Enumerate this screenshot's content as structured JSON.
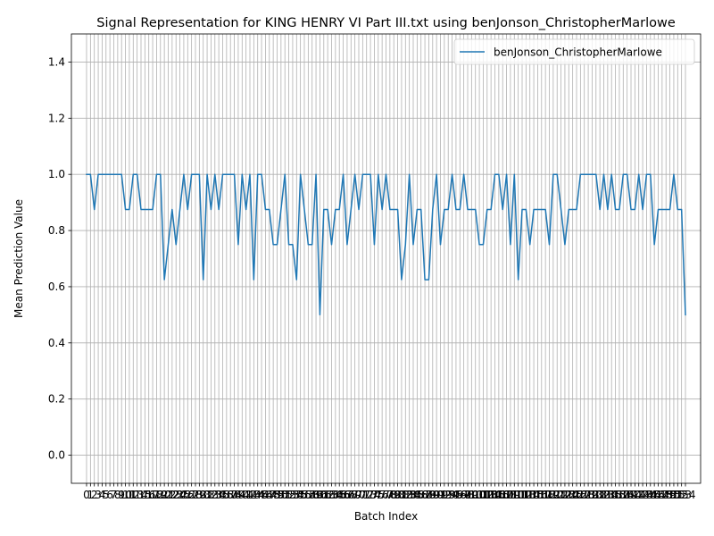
{
  "chart_data": {
    "type": "line",
    "title": "Signal Representation for KING HENRY VI Part III.txt using benJonson_ChristopherMarlowe",
    "xlabel": "Batch Index",
    "ylabel": "Mean Prediction Value",
    "xlim": [
      -3.9,
      157.9
    ],
    "ylim": [
      -0.1,
      1.5
    ],
    "yticks": [
      0.0,
      0.2,
      0.4,
      0.6,
      0.8,
      1.0,
      1.2,
      1.4
    ],
    "ytick_labels": [
      "0.0",
      "0.2",
      "0.4",
      "0.6",
      "0.8",
      "1.0",
      "1.2",
      "1.4"
    ],
    "grid": true,
    "legend_position": "upper right",
    "series": [
      {
        "name": "benJonson_ChristopherMarlowe",
        "color": "#1f77b4",
        "values": [
          1,
          1,
          0.875,
          1,
          1,
          1,
          1,
          1,
          1,
          1,
          0.875,
          0.875,
          1,
          1,
          0.875,
          0.875,
          0.875,
          0.875,
          1,
          1,
          0.625,
          0.75,
          0.875,
          0.75,
          0.875,
          1,
          0.875,
          1,
          1,
          1,
          0.625,
          1,
          0.875,
          1,
          0.875,
          1,
          1,
          1,
          1,
          0.75,
          1,
          0.875,
          1,
          0.625,
          1,
          1,
          0.875,
          0.875,
          0.75,
          0.75,
          0.875,
          1,
          0.75,
          0.75,
          0.625,
          1,
          0.875,
          0.75,
          0.75,
          1,
          0.5,
          0.875,
          0.875,
          0.75,
          0.875,
          0.875,
          1,
          0.75,
          0.875,
          1,
          0.875,
          1,
          1,
          1,
          0.75,
          1,
          0.875,
          1,
          0.875,
          0.875,
          0.875,
          0.625,
          0.75,
          1,
          0.75,
          0.875,
          0.875,
          0.625,
          0.625,
          0.875,
          1,
          0.75,
          0.875,
          0.875,
          1,
          0.875,
          0.875,
          1,
          0.875,
          0.875,
          0.875,
          0.75,
          0.75,
          0.875,
          0.875,
          1,
          1,
          0.875,
          1,
          0.75,
          1,
          0.625,
          0.875,
          0.875,
          0.75,
          0.875,
          0.875,
          0.875,
          0.875,
          0.75,
          1,
          1,
          0.875,
          0.75,
          0.875,
          0.875,
          0.875,
          1,
          1,
          1,
          1,
          1,
          0.875,
          1,
          0.875,
          1,
          0.875,
          0.875,
          1,
          1,
          0.875,
          0.875,
          1,
          0.875,
          1,
          1,
          0.75,
          0.875,
          0.875,
          0.875,
          0.875,
          1,
          0.875,
          0.875,
          0.5
        ]
      }
    ]
  }
}
